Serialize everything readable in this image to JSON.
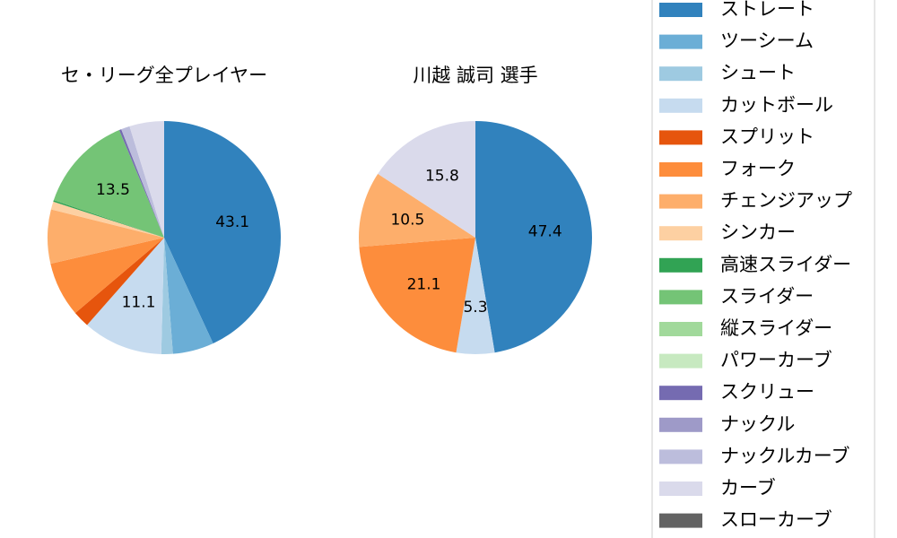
{
  "chart_data": [
    {
      "type": "pie",
      "title": "セ・リーグ全プレイヤー",
      "categories": [
        "ストレート",
        "ツーシーム",
        "シュート",
        "カットボール",
        "スプリット",
        "フォーク",
        "チェンジアップ",
        "シンカー",
        "高速スライダー",
        "スライダー",
        "縦スライダー",
        "パワーカーブ",
        "スクリュー",
        "ナックル",
        "ナックルカーブ",
        "カーブ",
        "スローカーブ"
      ],
      "colors": [
        "#3182bd",
        "#6baed6",
        "#9ecae1",
        "#c6dbef",
        "#e6550d",
        "#fd8d3c",
        "#fdae6b",
        "#fdd0a2",
        "#31a354",
        "#74c476",
        "#a1d99b",
        "#c7e9c0",
        "#756bb1",
        "#9e9ac8",
        "#bcbddc",
        "#dadaeb",
        "#636363"
      ],
      "values": [
        43.1,
        5.7,
        1.6,
        11.1,
        2.3,
        7.6,
        7.5,
        1.1,
        0.2,
        13.5,
        0,
        0,
        0.3,
        0,
        1.2,
        4.8,
        0
      ],
      "value_labels": [
        "43.1",
        null,
        null,
        "11.1",
        null,
        null,
        null,
        null,
        null,
        "13.5",
        null,
        null,
        null,
        null,
        null,
        null,
        null
      ]
    },
    {
      "type": "pie",
      "title": "川越 誠司  選手",
      "categories": [
        "ストレート",
        "カットボール",
        "フォーク",
        "チェンジアップ",
        "カーブ"
      ],
      "colors": [
        "#3182bd",
        "#c6dbef",
        "#fd8d3c",
        "#fdae6b",
        "#dadaeb"
      ],
      "values": [
        47.4,
        5.3,
        21.1,
        10.5,
        15.8
      ],
      "value_labels": [
        "47.4",
        "5.3",
        "21.1",
        "10.5",
        "15.8"
      ]
    }
  ]
}
